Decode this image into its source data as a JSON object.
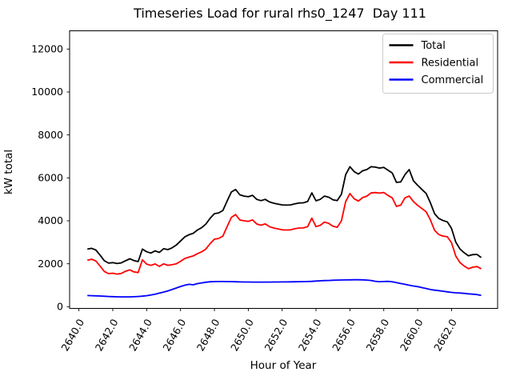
{
  "figure": {
    "title": "Timeseries Load for rural rhs0_1247  Day 111",
    "xlabel": "Hour of Year",
    "ylabel": "kW total"
  },
  "chart_data": {
    "type": "line",
    "title": "Timeseries Load for rural rhs0_1247  Day 111",
    "xlabel": "Hour of Year",
    "ylabel": "kW total",
    "grid": false,
    "x_start": 2640.5,
    "x_step": 0.25,
    "n_points": 94,
    "xlim": [
      2639.45,
      2664.72
    ],
    "ylim": [
      -80,
      12850
    ],
    "xticks": [
      2640,
      2642,
      2644,
      2646,
      2648,
      2650,
      2652,
      2654,
      2656,
      2658,
      2660,
      2662
    ],
    "xtick_labels": [
      "2640.0",
      "2642.0",
      "2644.0",
      "2646.0",
      "2648.0",
      "2650.0",
      "2652.0",
      "2654.0",
      "2656.0",
      "2658.0",
      "2660.0",
      "2662.0"
    ],
    "yticks": [
      0,
      2000,
      4000,
      6000,
      8000,
      10000,
      12000
    ],
    "ytick_labels": [
      "0",
      "2000",
      "4000",
      "6000",
      "8000",
      "10000",
      "12000"
    ],
    "legend": {
      "position": "upper right",
      "entries": [
        "Total",
        "Residential",
        "Commercial"
      ]
    },
    "series": [
      {
        "name": "Total",
        "color": "#000000",
        "values": [
          2680,
          2720,
          2640,
          2400,
          2140,
          2030,
          2050,
          2010,
          2040,
          2140,
          2230,
          2150,
          2100,
          2680,
          2560,
          2500,
          2600,
          2530,
          2700,
          2660,
          2740,
          2870,
          3060,
          3250,
          3350,
          3420,
          3570,
          3680,
          3850,
          4120,
          4330,
          4370,
          4480,
          4920,
          5340,
          5460,
          5210,
          5150,
          5120,
          5190,
          5000,
          4940,
          5000,
          4880,
          4820,
          4780,
          4740,
          4730,
          4740,
          4790,
          4830,
          4840,
          4900,
          5300,
          4930,
          5000,
          5150,
          5100,
          4980,
          4940,
          5240,
          6150,
          6520,
          6290,
          6175,
          6330,
          6390,
          6520,
          6500,
          6455,
          6490,
          6360,
          6230,
          5790,
          5810,
          6150,
          6390,
          5865,
          5655,
          5460,
          5270,
          4850,
          4330,
          4110,
          4010,
          3950,
          3645,
          3010,
          2685,
          2510,
          2370,
          2425,
          2435,
          2290
        ]
      },
      {
        "name": "Residential",
        "color": "#ff0000",
        "values": [
          2160,
          2210,
          2130,
          1890,
          1640,
          1540,
          1560,
          1520,
          1550,
          1650,
          1715,
          1620,
          1590,
          2180,
          1985,
          1925,
          1990,
          1875,
          1995,
          1930,
          1955,
          1995,
          2115,
          2245,
          2310,
          2365,
          2470,
          2555,
          2690,
          2940,
          3145,
          3175,
          3290,
          3730,
          4160,
          4290,
          4040,
          4000,
          3975,
          4040,
          3850,
          3795,
          3855,
          3730,
          3665,
          3625,
          3580,
          3570,
          3580,
          3630,
          3665,
          3670,
          3730,
          4125,
          3730,
          3790,
          3940,
          3880,
          3750,
          3700,
          4000,
          4900,
          5270,
          5030,
          4920,
          5080,
          5150,
          5300,
          5315,
          5290,
          5320,
          5180,
          5070,
          4670,
          4730,
          5070,
          5150,
          4900,
          4720,
          4570,
          4420,
          4050,
          3560,
          3360,
          3290,
          3260,
          2980,
          2360,
          2050,
          1890,
          1770,
          1840,
          1870,
          1760
        ]
      },
      {
        "name": "Commercial",
        "color": "#0000ff",
        "values": [
          520,
          512,
          505,
          496,
          485,
          474,
          466,
          460,
          456,
          455,
          458,
          464,
          474,
          490,
          512,
          545,
          585,
          630,
          680,
          735,
          800,
          870,
          940,
          1000,
          1040,
          1020,
          1075,
          1110,
          1140,
          1160,
          1170,
          1172,
          1172,
          1170,
          1168,
          1162,
          1155,
          1150,
          1148,
          1146,
          1145,
          1145,
          1146,
          1147,
          1148,
          1150,
          1152,
          1155,
          1158,
          1160,
          1163,
          1167,
          1172,
          1180,
          1195,
          1205,
          1215,
          1222,
          1230,
          1238,
          1242,
          1248,
          1252,
          1255,
          1255,
          1250,
          1240,
          1220,
          1185,
          1165,
          1172,
          1180,
          1160,
          1120,
          1080,
          1040,
          1000,
          965,
          935,
          890,
          848,
          800,
          770,
          748,
          720,
          692,
          665,
          648,
          635,
          620,
          600,
          585,
          565,
          528
        ]
      }
    ],
    "style": {
      "spine_color": "#000000",
      "legend_border_color": "#cccccc",
      "background": "#ffffff",
      "line_width": 1.8
    }
  }
}
